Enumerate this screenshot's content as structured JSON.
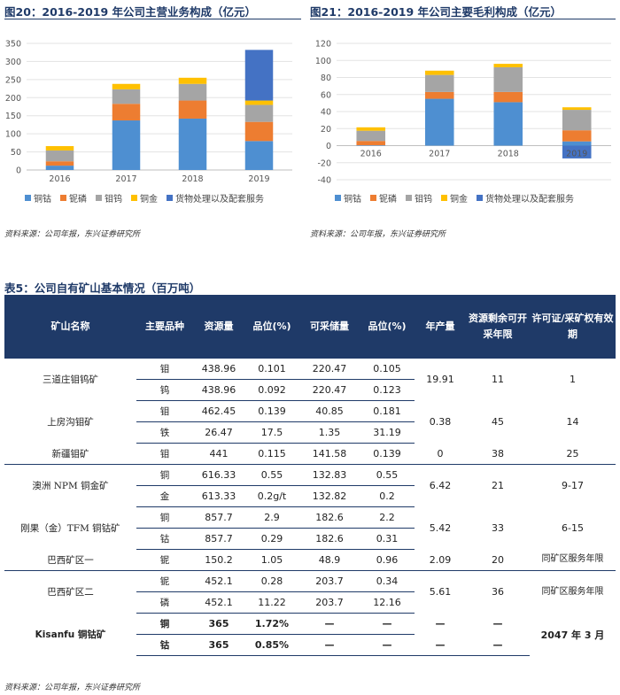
{
  "chart_data": [
    {
      "type": "bar",
      "stacked": true,
      "title": "图20：2016-2019 年公司主营业务构成（亿元）",
      "categories": [
        "2016",
        "2017",
        "2018",
        "2019"
      ],
      "ylim": [
        0,
        350
      ],
      "yticks": [
        "0",
        "50",
        "100",
        "150",
        "200",
        "250",
        "300",
        "350"
      ],
      "series": [
        {
          "name": "铜钴",
          "color": "#4e8fd1",
          "values": [
            12,
            137,
            142,
            80
          ]
        },
        {
          "name": "铌磷",
          "color": "#ed7d31",
          "values": [
            12,
            46,
            50,
            53
          ]
        },
        {
          "name": "钼钨",
          "color": "#a5a5a5",
          "values": [
            30,
            40,
            46,
            47
          ]
        },
        {
          "name": "铜金",
          "color": "#ffc000",
          "values": [
            12,
            15,
            17,
            12
          ]
        },
        {
          "name": "货物处理以及配套服务",
          "color": "#4472c4",
          "values": [
            0,
            0,
            0,
            140
          ]
        }
      ],
      "source": "资料来源：公司年报，东兴证券研究所"
    },
    {
      "type": "bar",
      "stacked": true,
      "title": "图21：2016-2019 年公司主要毛利构成（亿元）",
      "categories": [
        "2016",
        "2017",
        "2018",
        "2019"
      ],
      "ylim": [
        -40,
        120
      ],
      "yticks": [
        "-40",
        "-20",
        "0",
        "20",
        "40",
        "60",
        "80",
        "100",
        "120"
      ],
      "series": [
        {
          "name": "铜钴",
          "color": "#4e8fd1",
          "values": [
            0.5,
            55,
            51,
            5
          ]
        },
        {
          "name": "铌磷",
          "color": "#ed7d31",
          "values": [
            5,
            8,
            12,
            13
          ]
        },
        {
          "name": "钼钨",
          "color": "#a5a5a5",
          "values": [
            12,
            20,
            29,
            24
          ]
        },
        {
          "name": "铜金",
          "color": "#ffc000",
          "values": [
            4,
            5,
            4,
            3
          ]
        },
        {
          "name": "货物处理以及配套服务",
          "color": "#4472c4",
          "values": [
            0,
            0,
            0,
            -15
          ]
        }
      ],
      "source": "资料来源：公司年报，东兴证券研究所"
    }
  ],
  "table": {
    "title": "表5：公司自有矿山基本情况（百万吨）",
    "headers": [
      "矿山名称",
      "主要品种",
      "资源量",
      "品位(%)",
      "可采储量",
      "品位(%)",
      "年产量",
      "资源剩余可开采年限",
      "许可证/采矿权有效期"
    ],
    "mines": [
      {
        "name": "三道庄钼钨矿",
        "output": "19.91",
        "years": "11",
        "permit": "1",
        "rows": [
          [
            "钼",
            "438.96",
            "0.101",
            "220.47",
            "0.105"
          ],
          [
            "钨",
            "438.96",
            "0.092",
            "220.47",
            "0.123"
          ]
        ]
      },
      {
        "name": "上房沟钼矿",
        "output": "0.38",
        "years": "45",
        "permit": "14",
        "rows": [
          [
            "钼",
            "462.45",
            "0.139",
            "40.85",
            "0.181"
          ],
          [
            "铁",
            "26.47",
            "17.5",
            "1.35",
            "31.19"
          ]
        ]
      },
      {
        "name": "新疆钼矿",
        "output": "0",
        "years": "38",
        "permit": "25",
        "rows": [
          [
            "钼",
            "441",
            "0.115",
            "141.58",
            "0.139"
          ]
        ]
      },
      {
        "name": "澳洲 NPM 铜金矿",
        "output": "6.42",
        "years": "21",
        "permit": "9-17",
        "rows": [
          [
            "铜",
            "616.33",
            "0.55",
            "132.83",
            "0.55"
          ],
          [
            "金",
            "613.33",
            "0.2g/t",
            "132.82",
            "0.2"
          ]
        ]
      },
      {
        "name": "刚果（金）TFM 铜钴矿",
        "output": "5.42",
        "years": "33",
        "permit": "6-15",
        "rows": [
          [
            "铜",
            "857.7",
            "2.9",
            "182.6",
            "2.2"
          ],
          [
            "钴",
            "857.7",
            "0.29",
            "182.6",
            "0.31"
          ]
        ]
      },
      {
        "name": "巴西矿区一",
        "output": "2.09",
        "years": "20",
        "permit": "同矿区服务年限",
        "rows": [
          [
            "铌",
            "150.2",
            "1.05",
            "48.9",
            "0.96"
          ]
        ]
      },
      {
        "name": "巴西矿区二",
        "output": "5.61",
        "years": "36",
        "permit": "同矿区服务年限",
        "rows": [
          [
            "铌",
            "452.1",
            "0.28",
            "203.7",
            "0.34"
          ],
          [
            "磷",
            "452.1",
            "11.22",
            "203.7",
            "12.16"
          ]
        ]
      },
      {
        "name": "Kisanfu 铜钴矿",
        "output": "—",
        "years": "—",
        "permit": "2047 年 3 月",
        "bold": true,
        "rows": [
          [
            "铜",
            "365",
            "1.72%",
            "—",
            "—"
          ],
          [
            "钴",
            "365",
            "0.85%",
            "—",
            "—"
          ]
        ],
        "row_extra": [
          [
            "—",
            "—"
          ],
          [
            "—",
            "—"
          ]
        ]
      }
    ],
    "source": "资料来源：公司年报，东兴证券研究所"
  }
}
